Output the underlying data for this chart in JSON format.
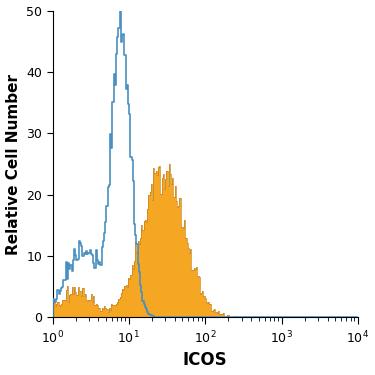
{
  "title": "",
  "xlabel": "ICOS",
  "ylabel": "Relative Cell Number",
  "xlim_log": [
    1,
    10000
  ],
  "ylim": [
    0,
    50
  ],
  "yticks": [
    0,
    10,
    20,
    30,
    40,
    50
  ],
  "background_color": "#ffffff",
  "blue_color": "#4a8fc0",
  "orange_color": "#f5a623",
  "orange_edge_color": "#c8841a",
  "xlabel_fontsize": 12,
  "ylabel_fontsize": 11,
  "blue_peak_x": 8.5,
  "blue_peak_y": 50,
  "orange_peak_x": 22,
  "orange_peak_y": 25,
  "blue_seed": 12,
  "orange_seed": 7
}
